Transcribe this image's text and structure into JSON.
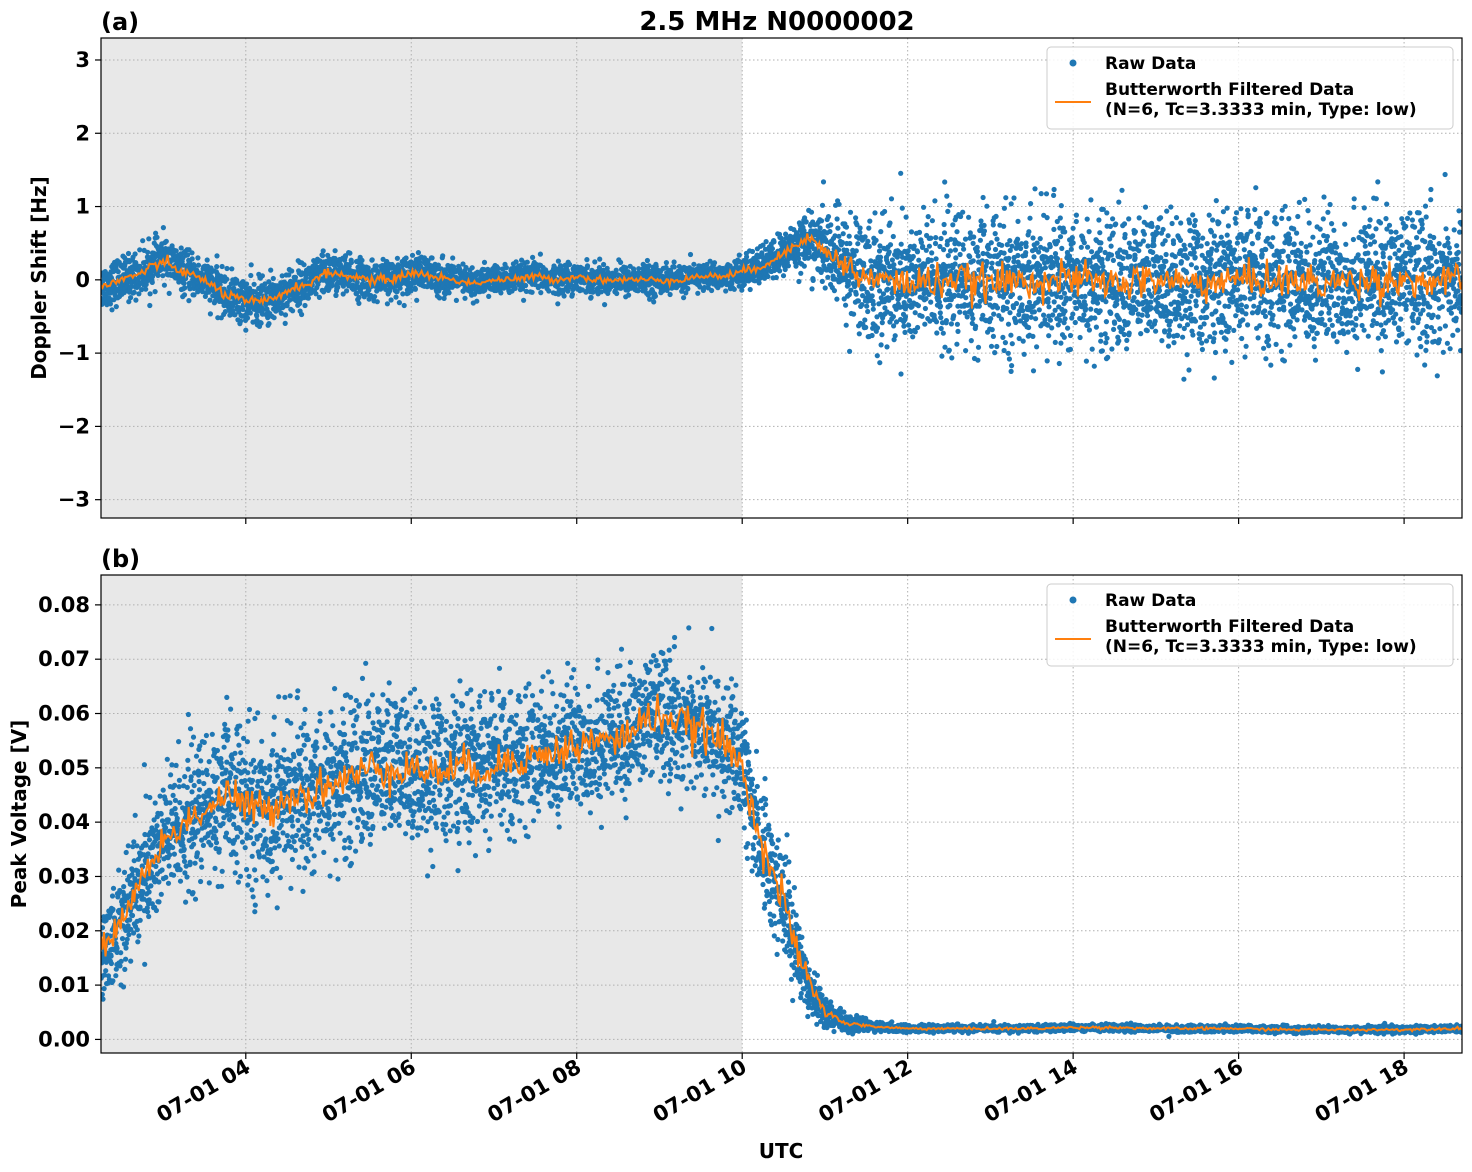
{
  "figure": {
    "title": "2.5 MHz N0000002",
    "xlabel": "UTC"
  },
  "chart_data": [
    {
      "type": "scatter",
      "panel_label": "(a)",
      "title": "2.5 MHz N0000002",
      "xlabel": "",
      "ylabel": "Doppler Shift [Hz]",
      "x_unit": "hours UTC on 07-01",
      "xlim": [
        2.25,
        18.7
      ],
      "ylim": [
        -3.25,
        3.3
      ],
      "yticks": [
        -3,
        -2,
        -1,
        0,
        1,
        2,
        3
      ],
      "ytick_labels": [
        "−3",
        "−2",
        "−1",
        "0",
        "1",
        "2",
        "3"
      ],
      "xticks": [
        4,
        6,
        8,
        10,
        12,
        14,
        16,
        18
      ],
      "xtick_labels": [
        "07-01 04",
        "07-01 06",
        "07-01 08",
        "07-01 10",
        "07-01 12",
        "07-01 14",
        "07-01 16",
        "07-01 18"
      ],
      "grid": true,
      "shaded_region": [
        2.25,
        10.0
      ],
      "legend_position": "top-right",
      "series": [
        {
          "name": "Raw Data",
          "kind": "scatter",
          "color": "#1f77b4",
          "x": [
            2.25,
            2.5,
            2.75,
            3.0,
            3.25,
            3.5,
            3.75,
            4.0,
            4.25,
            4.5,
            4.75,
            5.0,
            5.25,
            5.5,
            5.75,
            6.0,
            6.25,
            6.5,
            6.75,
            7.0,
            7.25,
            7.5,
            7.75,
            8.0,
            8.25,
            8.5,
            8.75,
            9.0,
            9.25,
            9.5,
            9.75,
            10.0,
            10.25,
            10.5,
            10.75,
            11.0,
            11.25,
            11.5,
            11.75,
            12.0,
            12.5,
            13.0,
            13.5,
            14.0,
            14.5,
            15.0,
            15.5,
            16.0,
            16.5,
            17.0,
            17.5,
            18.0,
            18.5,
            18.7
          ],
          "center": [
            -0.1,
            0.0,
            0.1,
            0.3,
            0.1,
            0.0,
            -0.2,
            -0.3,
            -0.3,
            -0.15,
            -0.05,
            0.1,
            0.05,
            0.0,
            0.0,
            0.1,
            0.05,
            0.0,
            -0.05,
            0.0,
            0.0,
            0.05,
            0.0,
            0.05,
            0.0,
            0.0,
            0.0,
            0.0,
            0.0,
            0.05,
            0.05,
            0.1,
            0.2,
            0.35,
            0.55,
            0.4,
            0.2,
            0.0,
            0.0,
            -0.05,
            0.0,
            -0.05,
            0.0,
            0.0,
            -0.05,
            0.0,
            -0.05,
            0.0,
            0.0,
            -0.05,
            0.0,
            0.0,
            -0.05,
            0.0
          ],
          "spread": [
            0.3,
            0.3,
            0.3,
            0.3,
            0.28,
            0.28,
            0.3,
            0.32,
            0.32,
            0.3,
            0.3,
            0.3,
            0.28,
            0.25,
            0.25,
            0.25,
            0.25,
            0.22,
            0.22,
            0.2,
            0.2,
            0.2,
            0.2,
            0.2,
            0.2,
            0.2,
            0.2,
            0.2,
            0.18,
            0.18,
            0.18,
            0.2,
            0.25,
            0.3,
            0.35,
            0.5,
            0.7,
            0.85,
            0.9,
            0.9,
            0.9,
            0.9,
            0.9,
            0.9,
            0.9,
            0.9,
            0.9,
            0.9,
            0.9,
            0.9,
            0.9,
            0.9,
            0.9,
            0.9
          ]
        },
        {
          "name": "Butterworth Filtered Data\n(N=6, Tc=3.3333 min, Type: low)",
          "name_lines": [
            "Butterworth Filtered Data",
            "(N=6, Tc=3.3333 min, Type: low)"
          ],
          "kind": "line",
          "color": "#ff7f0e",
          "x": [
            2.25,
            2.5,
            2.75,
            3.0,
            3.25,
            3.5,
            3.75,
            4.0,
            4.25,
            4.5,
            4.75,
            5.0,
            5.25,
            5.5,
            5.75,
            6.0,
            6.25,
            6.5,
            6.75,
            7.0,
            7.25,
            7.5,
            7.75,
            8.0,
            8.25,
            8.5,
            8.75,
            9.0,
            9.25,
            9.5,
            9.75,
            10.0,
            10.25,
            10.5,
            10.75,
            11.0,
            11.25,
            11.5,
            11.75,
            12.0,
            12.5,
            13.0,
            13.5,
            14.0,
            14.5,
            15.0,
            15.5,
            16.0,
            16.5,
            17.0,
            17.5,
            18.0,
            18.5,
            18.7
          ],
          "y": [
            -0.1,
            0.0,
            0.1,
            0.25,
            0.1,
            0.0,
            -0.2,
            -0.3,
            -0.3,
            -0.15,
            -0.05,
            0.1,
            0.05,
            0.0,
            0.0,
            0.1,
            0.05,
            0.0,
            -0.05,
            0.0,
            0.0,
            0.05,
            0.0,
            0.05,
            0.0,
            0.0,
            0.0,
            0.0,
            0.0,
            0.05,
            0.05,
            0.1,
            0.2,
            0.35,
            0.6,
            0.4,
            0.2,
            0.0,
            0.0,
            -0.05,
            0.0,
            -0.05,
            0.0,
            0.0,
            -0.05,
            0.0,
            -0.05,
            0.0,
            0.0,
            -0.05,
            0.0,
            0.0,
            -0.05,
            0.0
          ],
          "jitter": [
            0.05,
            0.05,
            0.06,
            0.06,
            0.05,
            0.05,
            0.06,
            0.06,
            0.06,
            0.05,
            0.05,
            0.05,
            0.05,
            0.05,
            0.05,
            0.05,
            0.05,
            0.04,
            0.04,
            0.04,
            0.04,
            0.04,
            0.04,
            0.04,
            0.04,
            0.04,
            0.04,
            0.04,
            0.04,
            0.04,
            0.04,
            0.05,
            0.05,
            0.06,
            0.08,
            0.1,
            0.14,
            0.18,
            0.2,
            0.2,
            0.2,
            0.2,
            0.2,
            0.2,
            0.2,
            0.2,
            0.2,
            0.2,
            0.2,
            0.2,
            0.2,
            0.2,
            0.2,
            0.2
          ]
        }
      ]
    },
    {
      "type": "scatter",
      "panel_label": "(b)",
      "title": "",
      "xlabel": "UTC",
      "ylabel": "Peak Voltage [V]",
      "x_unit": "hours UTC on 07-01",
      "xlim": [
        2.25,
        18.7
      ],
      "ylim": [
        -0.0025,
        0.0855
      ],
      "yticks": [
        0.0,
        0.01,
        0.02,
        0.03,
        0.04,
        0.05,
        0.06,
        0.07,
        0.08
      ],
      "ytick_labels": [
        "0.00",
        "0.01",
        "0.02",
        "0.03",
        "0.04",
        "0.05",
        "0.06",
        "0.07",
        "0.08"
      ],
      "xticks": [
        4,
        6,
        8,
        10,
        12,
        14,
        16,
        18
      ],
      "xtick_labels": [
        "07-01 04",
        "07-01 06",
        "07-01 08",
        "07-01 10",
        "07-01 12",
        "07-01 14",
        "07-01 16",
        "07-01 18"
      ],
      "grid": true,
      "shaded_region": [
        2.25,
        10.0
      ],
      "legend_position": "top-right",
      "series": [
        {
          "name": "Raw Data",
          "kind": "scatter",
          "color": "#1f77b4",
          "x": [
            2.25,
            2.5,
            2.75,
            3.0,
            3.25,
            3.5,
            3.75,
            4.0,
            4.25,
            4.5,
            4.75,
            5.0,
            5.25,
            5.5,
            5.75,
            6.0,
            6.25,
            6.5,
            6.75,
            7.0,
            7.25,
            7.5,
            7.75,
            8.0,
            8.25,
            8.5,
            8.75,
            9.0,
            9.25,
            9.5,
            9.75,
            10.0,
            10.25,
            10.5,
            10.75,
            11.0,
            11.25,
            11.5,
            11.75,
            12.0,
            12.5,
            13.0,
            13.5,
            14.0,
            14.5,
            15.0,
            15.5,
            16.0,
            16.5,
            17.0,
            17.5,
            18.0,
            18.5,
            18.7
          ],
          "center": [
            0.015,
            0.022,
            0.03,
            0.036,
            0.04,
            0.042,
            0.045,
            0.043,
            0.042,
            0.045,
            0.045,
            0.047,
            0.048,
            0.05,
            0.05,
            0.05,
            0.049,
            0.05,
            0.05,
            0.05,
            0.052,
            0.052,
            0.053,
            0.054,
            0.055,
            0.055,
            0.058,
            0.06,
            0.058,
            0.057,
            0.055,
            0.05,
            0.035,
            0.025,
            0.012,
            0.005,
            0.003,
            0.0025,
            0.0022,
            0.002,
            0.002,
            0.002,
            0.002,
            0.0022,
            0.0022,
            0.002,
            0.002,
            0.002,
            0.0018,
            0.0018,
            0.0018,
            0.0018,
            0.002,
            0.002
          ],
          "spread": [
            0.008,
            0.01,
            0.012,
            0.013,
            0.013,
            0.013,
            0.014,
            0.014,
            0.014,
            0.014,
            0.014,
            0.014,
            0.014,
            0.014,
            0.014,
            0.013,
            0.013,
            0.013,
            0.013,
            0.013,
            0.012,
            0.012,
            0.012,
            0.012,
            0.012,
            0.011,
            0.011,
            0.011,
            0.011,
            0.011,
            0.011,
            0.012,
            0.011,
            0.01,
            0.006,
            0.003,
            0.0015,
            0.001,
            0.0008,
            0.0006,
            0.0006,
            0.0006,
            0.0006,
            0.0006,
            0.0006,
            0.0006,
            0.0006,
            0.0006,
            0.0006,
            0.0006,
            0.0006,
            0.0006,
            0.0006,
            0.0006
          ]
        },
        {
          "name": "Butterworth Filtered Data\n(N=6, Tc=3.3333 min, Type: low)",
          "name_lines": [
            "Butterworth Filtered Data",
            "(N=6, Tc=3.3333 min, Type: low)"
          ],
          "kind": "line",
          "color": "#ff7f0e",
          "x": [
            2.25,
            2.5,
            2.75,
            3.0,
            3.25,
            3.5,
            3.75,
            4.0,
            4.25,
            4.5,
            4.75,
            5.0,
            5.25,
            5.5,
            5.75,
            6.0,
            6.25,
            6.5,
            6.75,
            7.0,
            7.25,
            7.5,
            7.75,
            8.0,
            8.25,
            8.5,
            8.75,
            9.0,
            9.25,
            9.5,
            9.75,
            10.0,
            10.25,
            10.5,
            10.75,
            11.0,
            11.25,
            11.5,
            11.75,
            12.0,
            12.5,
            13.0,
            13.5,
            14.0,
            14.5,
            15.0,
            15.5,
            16.0,
            16.5,
            17.0,
            17.5,
            18.0,
            18.5,
            18.7
          ],
          "y": [
            0.016,
            0.022,
            0.03,
            0.036,
            0.04,
            0.042,
            0.045,
            0.043,
            0.042,
            0.045,
            0.045,
            0.047,
            0.048,
            0.05,
            0.05,
            0.05,
            0.049,
            0.05,
            0.05,
            0.05,
            0.052,
            0.052,
            0.053,
            0.054,
            0.055,
            0.055,
            0.058,
            0.06,
            0.058,
            0.057,
            0.055,
            0.05,
            0.036,
            0.025,
            0.012,
            0.005,
            0.003,
            0.0025,
            0.0022,
            0.002,
            0.002,
            0.002,
            0.002,
            0.0022,
            0.0022,
            0.002,
            0.002,
            0.002,
            0.0018,
            0.0018,
            0.0018,
            0.0018,
            0.002,
            0.002
          ],
          "jitter": [
            0.002,
            0.002,
            0.002,
            0.0025,
            0.0025,
            0.0025,
            0.003,
            0.003,
            0.003,
            0.003,
            0.003,
            0.003,
            0.003,
            0.003,
            0.003,
            0.003,
            0.003,
            0.003,
            0.003,
            0.003,
            0.003,
            0.003,
            0.003,
            0.003,
            0.003,
            0.003,
            0.003,
            0.003,
            0.003,
            0.003,
            0.003,
            0.003,
            0.003,
            0.003,
            0.002,
            0.0008,
            0.0003,
            0.0002,
            0.0002,
            0.0002,
            0.0002,
            0.0002,
            0.0002,
            0.0002,
            0.0002,
            0.0002,
            0.0002,
            0.0002,
            0.0002,
            0.0002,
            0.0002,
            0.0002,
            0.0002,
            0.0002
          ]
        }
      ]
    }
  ]
}
